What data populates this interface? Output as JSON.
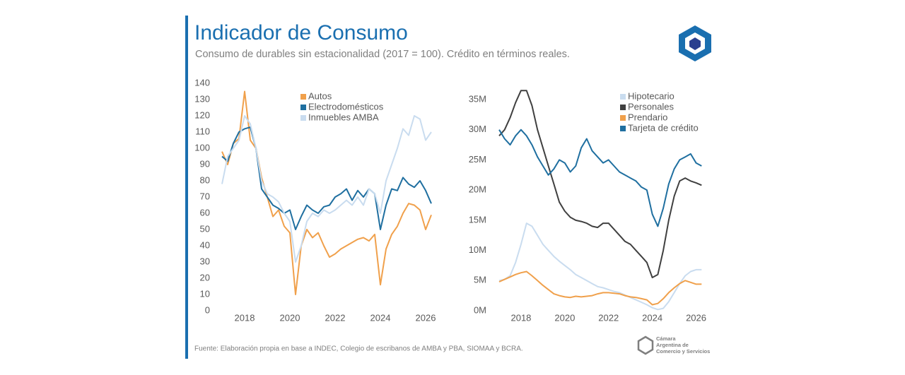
{
  "header": {
    "title": "Indicador de Consumo",
    "subtitle": "Consumo de durables sin estacionalidad (2017 = 100). Crédito en términos reales."
  },
  "chart_data": [
    {
      "type": "line",
      "legend": "top-center",
      "x": [
        2017,
        2017.25,
        2017.5,
        2017.75,
        2018,
        2018.25,
        2018.5,
        2018.75,
        2019,
        2019.25,
        2019.5,
        2019.75,
        2020,
        2020.25,
        2020.5,
        2020.75,
        2021,
        2021.25,
        2021.5,
        2021.75,
        2022,
        2022.25,
        2022.5,
        2022.75,
        2023,
        2023.25,
        2023.5,
        2023.75,
        2024,
        2024.25,
        2024.5,
        2024.75,
        2025,
        2025.25,
        2025.5,
        2025.75,
        2026,
        2026.25
      ],
      "xlim": [
        2017,
        2026.5
      ],
      "xticks": [
        2018,
        2020,
        2022,
        2024,
        2026
      ],
      "ylim": [
        0,
        140
      ],
      "yticks": [
        0,
        10,
        20,
        30,
        40,
        50,
        60,
        70,
        80,
        90,
        100,
        110,
        120,
        130,
        140
      ],
      "series": [
        {
          "name": "Autos",
          "color": "#f0a04b",
          "values": [
            98,
            90,
            103,
            106,
            135,
            105,
            100,
            82,
            70,
            58,
            62,
            52,
            48,
            10,
            40,
            50,
            45,
            48,
            40,
            33,
            35,
            38,
            40,
            42,
            44,
            45,
            43,
            47,
            16,
            38,
            47,
            52,
            60,
            66,
            65,
            62,
            50,
            59
          ]
        },
        {
          "name": "Electrodomésticos",
          "color": "#1f6fa0",
          "values": [
            95,
            92,
            103,
            110,
            112,
            113,
            100,
            75,
            70,
            65,
            63,
            60,
            62,
            50,
            58,
            65,
            62,
            60,
            64,
            65,
            70,
            72,
            75,
            68,
            74,
            70,
            75,
            72,
            50,
            65,
            75,
            74,
            82,
            78,
            76,
            80,
            74,
            66
          ]
        },
        {
          "name": "Inmuebles AMBA",
          "color": "#c9dcef",
          "values": [
            78,
            95,
            100,
            105,
            120,
            115,
            100,
            80,
            72,
            70,
            67,
            60,
            55,
            30,
            40,
            55,
            60,
            58,
            62,
            60,
            62,
            65,
            68,
            65,
            70,
            65,
            75,
            72,
            60,
            80,
            90,
            100,
            112,
            108,
            120,
            118,
            105,
            110
          ]
        }
      ]
    },
    {
      "type": "line",
      "legend": "top-center",
      "x": [
        2017,
        2017.25,
        2017.5,
        2017.75,
        2018,
        2018.25,
        2018.5,
        2018.75,
        2019,
        2019.25,
        2019.5,
        2019.75,
        2020,
        2020.25,
        2020.5,
        2020.75,
        2021,
        2021.25,
        2021.5,
        2021.75,
        2022,
        2022.25,
        2022.5,
        2022.75,
        2023,
        2023.25,
        2023.5,
        2023.75,
        2024,
        2024.25,
        2024.5,
        2024.75,
        2025,
        2025.25,
        2025.5,
        2025.75,
        2026,
        2026.25
      ],
      "xlim": [
        2017,
        2026.5
      ],
      "xticks": [
        2018,
        2020,
        2022,
        2024,
        2026
      ],
      "ylim": [
        0,
        35
      ],
      "yticks": [
        {
          "value": 0,
          "label": "0M"
        },
        {
          "value": 5,
          "label": "5M"
        },
        {
          "value": 10,
          "label": "10M"
        },
        {
          "value": 15,
          "label": "15M"
        },
        {
          "value": 20,
          "label": "20M"
        },
        {
          "value": 25,
          "label": "25M"
        },
        {
          "value": 30,
          "label": "30M"
        },
        {
          "value": 35,
          "label": "35M"
        }
      ],
      "series": [
        {
          "name": "Hipotecario",
          "color": "#c9dcef",
          "values": [
            5,
            5.2,
            5.8,
            8,
            11,
            14.5,
            14,
            12.5,
            11,
            10,
            9,
            8.2,
            7.5,
            6.8,
            6,
            5.5,
            5,
            4.5,
            4,
            3.8,
            3.5,
            3.2,
            3,
            2.6,
            2.2,
            1.8,
            1.4,
            1,
            0.5,
            0.2,
            0.4,
            1.5,
            3,
            4.5,
            5.8,
            6.5,
            6.8,
            6.8
          ]
        },
        {
          "name": "Personales",
          "color": "#404040",
          "values": [
            29,
            30,
            32,
            34.5,
            36.5,
            36.5,
            34,
            30,
            27,
            24,
            21,
            18,
            16.5,
            15.5,
            15,
            14.8,
            14.5,
            14,
            13.8,
            14.5,
            14.5,
            13.5,
            12.5,
            11.5,
            11,
            10,
            9,
            8,
            5.5,
            6,
            10,
            15,
            19,
            21.5,
            22,
            21.5,
            21.2,
            20.8
          ]
        },
        {
          "name": "Prendario",
          "color": "#f0a04b",
          "values": [
            4.8,
            5.2,
            5.6,
            6,
            6.3,
            6.5,
            5.8,
            5,
            4.2,
            3.5,
            2.8,
            2.5,
            2.3,
            2.2,
            2.4,
            2.3,
            2.4,
            2.5,
            2.8,
            3,
            3,
            2.9,
            2.8,
            2.5,
            2.3,
            2.2,
            2,
            1.8,
            1,
            1.2,
            2,
            3,
            3.8,
            4.5,
            5,
            4.7,
            4.4,
            4.4
          ]
        },
        {
          "name": "Tarjeta de crédito",
          "color": "#1f6fa0",
          "values": [
            30,
            28.5,
            27.5,
            29,
            30,
            29,
            27.5,
            25.5,
            24,
            22.5,
            23.5,
            25,
            24.5,
            23,
            24,
            27,
            28.5,
            26.5,
            25.5,
            24.5,
            25,
            24,
            23,
            22.5,
            22,
            21.5,
            20.5,
            20,
            16,
            14,
            17,
            21,
            23.5,
            25,
            25.5,
            26,
            24.5,
            24
          ]
        }
      ]
    }
  ],
  "footer": {
    "source": "Fuente: Elaboración propia en base a INDEC, Colegio de escribanos de AMBA y PBA, SIOMAA y BCRA.",
    "org_lines": [
      "Cámara",
      "Argentina de",
      "Comercio y Servicios"
    ]
  }
}
